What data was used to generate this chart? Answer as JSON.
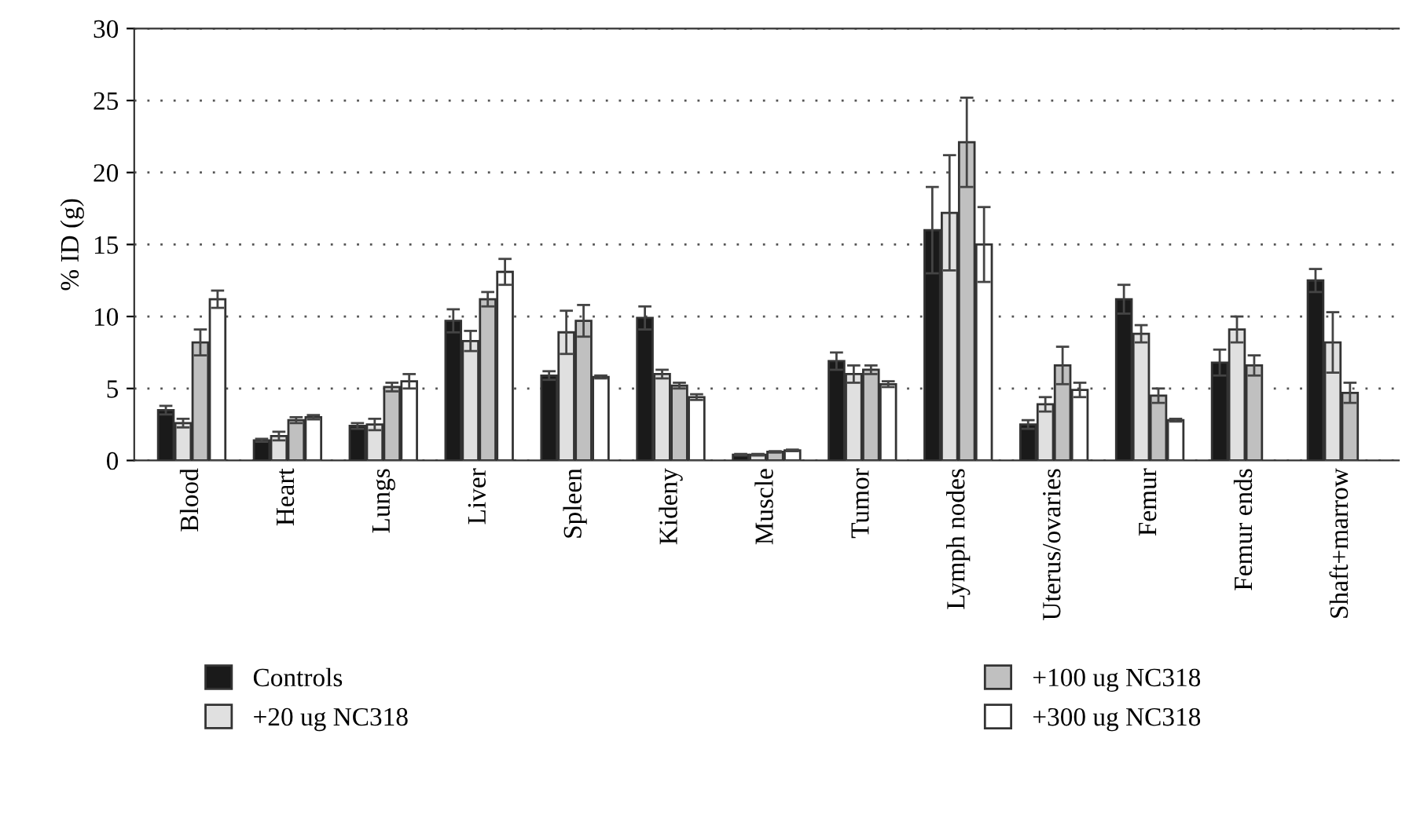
{
  "chart_data": {
    "type": "bar",
    "ylabel": "% ID (g)",
    "categories": [
      "Blood",
      "Heart",
      "Lungs",
      "Liver",
      "Spleen",
      "Kideny",
      "Muscle",
      "Tumor",
      "Lymph nodes",
      "Uterus/ovaries",
      "Femur",
      "Femur ends",
      "Shaft+marrow"
    ],
    "series": [
      {
        "name": "Controls",
        "color": "#1a1a1a",
        "values": [
          3.5,
          1.4,
          2.4,
          9.7,
          5.9,
          9.9,
          0.4,
          6.9,
          16.0,
          2.5,
          11.2,
          6.8,
          12.5
        ],
        "errors": [
          0.3,
          0.1,
          0.2,
          0.8,
          0.3,
          0.8,
          0.05,
          0.6,
          3.0,
          0.3,
          1.0,
          0.9,
          0.8
        ]
      },
      {
        "name": "+20 ug NC318",
        "color": "#e0e0e0",
        "values": [
          2.6,
          1.7,
          2.5,
          8.3,
          8.9,
          6.0,
          0.4,
          6.0,
          17.2,
          3.9,
          8.8,
          9.1,
          8.2
        ],
        "errors": [
          0.3,
          0.3,
          0.4,
          0.7,
          1.5,
          0.3,
          0.05,
          0.6,
          4.0,
          0.5,
          0.6,
          0.9,
          2.1
        ]
      },
      {
        "name": "+100 ug NC318",
        "color": "#c0c0c0",
        "values": [
          8.2,
          2.8,
          5.1,
          11.2,
          9.7,
          5.2,
          0.6,
          6.3,
          22.1,
          6.6,
          4.5,
          6.6,
          4.7
        ],
        "errors": [
          0.9,
          0.2,
          0.3,
          0.5,
          1.1,
          0.2,
          0.05,
          0.3,
          3.1,
          1.3,
          0.5,
          0.7,
          0.7
        ]
      },
      {
        "name": "+300 ug NC318",
        "color": "#ffffff",
        "values": [
          11.2,
          3.0,
          5.5,
          13.1,
          5.8,
          4.4,
          0.7,
          5.3,
          15.0,
          4.9,
          2.8,
          null,
          null
        ],
        "errors": [
          0.6,
          0.15,
          0.5,
          0.9,
          0.1,
          0.2,
          0.05,
          0.2,
          2.6,
          0.5,
          0.1,
          null,
          null
        ]
      }
    ],
    "ylim": [
      0,
      30
    ],
    "yticks": [
      0,
      5,
      10,
      15,
      20,
      25,
      30
    ],
    "grid": "y",
    "legend": "bottom"
  }
}
